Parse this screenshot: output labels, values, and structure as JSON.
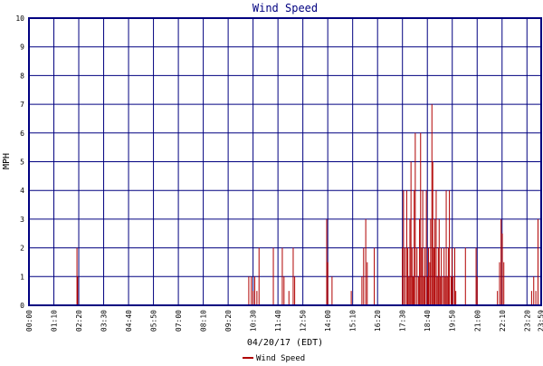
{
  "chart_data": {
    "type": "bar",
    "title": "Wind Speed",
    "xlabel": "04/20/17 (EDT)",
    "ylabel": "MPH",
    "ylim": [
      0,
      10
    ],
    "yticks": [
      "0",
      "1",
      "2",
      "3",
      "4",
      "5",
      "6",
      "7",
      "8",
      "9",
      "10"
    ],
    "xrange_hours": [
      0,
      24
    ],
    "xticks": [
      {
        "label": "00:00",
        "h": 0.0
      },
      {
        "label": "01:10",
        "h": 1.1667
      },
      {
        "label": "02:20",
        "h": 2.3333
      },
      {
        "label": "03:30",
        "h": 3.5
      },
      {
        "label": "04:40",
        "h": 4.6667
      },
      {
        "label": "05:50",
        "h": 5.8333
      },
      {
        "label": "07:00",
        "h": 7.0
      },
      {
        "label": "08:10",
        "h": 8.1667
      },
      {
        "label": "09:20",
        "h": 9.3333
      },
      {
        "label": "10:30",
        "h": 10.5
      },
      {
        "label": "11:40",
        "h": 11.6667
      },
      {
        "label": "12:50",
        "h": 12.8333
      },
      {
        "label": "14:00",
        "h": 14.0
      },
      {
        "label": "15:10",
        "h": 15.1667
      },
      {
        "label": "16:20",
        "h": 16.3333
      },
      {
        "label": "17:30",
        "h": 17.5
      },
      {
        "label": "18:40",
        "h": 18.6667
      },
      {
        "label": "19:50",
        "h": 19.8333
      },
      {
        "label": "21:00",
        "h": 21.0
      },
      {
        "label": "22:10",
        "h": 22.1667
      },
      {
        "label": "23:20",
        "h": 23.3333
      },
      {
        "label": "23:59",
        "h": 23.98
      }
    ],
    "legend": {
      "label": "Wind Speed",
      "placement": "bottom-center"
    },
    "grid": true,
    "series": [
      {
        "name": "Wind Speed",
        "color": "#b00000",
        "points": [
          [
            2.25,
            2
          ],
          [
            2.28,
            1
          ],
          [
            10.3,
            1
          ],
          [
            10.42,
            1
          ],
          [
            10.5,
            0.5
          ],
          [
            10.58,
            1
          ],
          [
            10.68,
            0.5
          ],
          [
            10.78,
            2
          ],
          [
            11.45,
            2
          ],
          [
            11.87,
            2
          ],
          [
            11.95,
            1
          ],
          [
            12.18,
            0.5
          ],
          [
            12.38,
            2
          ],
          [
            12.45,
            1
          ],
          [
            13.95,
            3
          ],
          [
            14.0,
            1.5
          ],
          [
            14.2,
            1
          ],
          [
            15.1,
            0.5
          ],
          [
            15.6,
            1
          ],
          [
            15.68,
            2
          ],
          [
            15.78,
            3
          ],
          [
            15.85,
            1.5
          ],
          [
            16.18,
            2
          ],
          [
            17.5,
            2
          ],
          [
            17.55,
            4
          ],
          [
            17.62,
            2
          ],
          [
            17.7,
            4
          ],
          [
            17.75,
            2
          ],
          [
            17.8,
            1
          ],
          [
            17.85,
            3
          ],
          [
            17.9,
            5
          ],
          [
            17.95,
            2
          ],
          [
            18.0,
            1
          ],
          [
            18.05,
            4
          ],
          [
            18.1,
            6
          ],
          [
            18.18,
            2
          ],
          [
            18.25,
            1
          ],
          [
            18.3,
            3
          ],
          [
            18.35,
            6
          ],
          [
            18.4,
            2
          ],
          [
            18.45,
            4
          ],
          [
            18.5,
            1
          ],
          [
            18.55,
            2
          ],
          [
            18.62,
            4
          ],
          [
            18.68,
            1
          ],
          [
            18.72,
            2
          ],
          [
            18.78,
            1.5
          ],
          [
            18.82,
            3
          ],
          [
            18.88,
            7
          ],
          [
            18.92,
            5
          ],
          [
            18.97,
            2
          ],
          [
            19.02,
            3
          ],
          [
            19.08,
            4
          ],
          [
            19.13,
            1
          ],
          [
            19.18,
            2
          ],
          [
            19.22,
            3
          ],
          [
            19.28,
            1
          ],
          [
            19.32,
            2
          ],
          [
            19.38,
            1
          ],
          [
            19.45,
            2
          ],
          [
            19.5,
            1
          ],
          [
            19.55,
            4
          ],
          [
            19.6,
            1
          ],
          [
            19.65,
            2
          ],
          [
            19.7,
            4
          ],
          [
            19.78,
            1
          ],
          [
            19.82,
            2
          ],
          [
            19.88,
            1
          ],
          [
            19.95,
            2
          ],
          [
            20.0,
            0.5
          ],
          [
            20.45,
            2
          ],
          [
            20.95,
            2
          ],
          [
            21.0,
            1
          ],
          [
            21.95,
            0.5
          ],
          [
            22.05,
            1.5
          ],
          [
            22.12,
            3
          ],
          [
            22.18,
            2.5
          ],
          [
            22.25,
            1.5
          ],
          [
            23.55,
            0.5
          ],
          [
            23.65,
            1
          ],
          [
            23.75,
            0.5
          ],
          [
            23.85,
            3
          ]
        ]
      }
    ]
  }
}
